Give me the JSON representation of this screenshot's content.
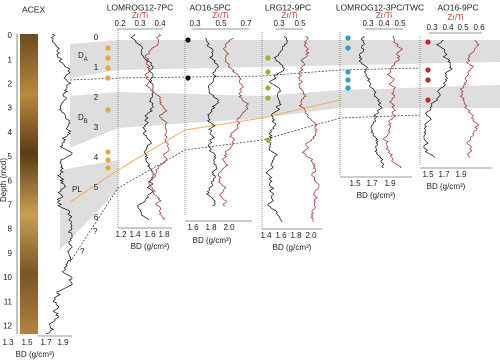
{
  "panels": [
    {
      "title": "ACEX",
      "x_label": "BD (g/cm³)",
      "x_ticks": [
        "1.3",
        "1.5",
        "1.7",
        "1.9"
      ]
    },
    {
      "title": "LOMROG12-7PC",
      "x_label": "BD (g/cm³)",
      "x_ticks": [
        "1.2",
        "1.4",
        "1.6",
        "1.8"
      ],
      "top_label": "Zr/Ti",
      "top_ticks": [
        "0.2",
        "0.3",
        "0.4"
      ],
      "depth_ticks": [
        "0",
        "1",
        "2",
        "3",
        "4",
        "5",
        "6"
      ]
    },
    {
      "title": "AO16-5PC",
      "x_label": "BD (g/cm³)",
      "x_ticks": [
        "1.6",
        "1.8",
        "2.0"
      ],
      "top_label": "Zr/Ti",
      "top_ticks": [
        "0.3",
        "0.5",
        "0.7"
      ]
    },
    {
      "title": "LRG12-9PC",
      "x_label": "BD (g/cm³)",
      "x_ticks": [
        "1.4",
        "1.6",
        "1.8",
        "2.0"
      ],
      "top_label": "Zr/Ti",
      "top_ticks": [
        "0.3",
        "0.5"
      ]
    },
    {
      "title": "LOMROG12-3PC/TWC",
      "x_label": "BD (g/cm³)",
      "x_ticks": [
        "1.5",
        "1.7",
        "1.9"
      ],
      "top_label": "Zr/Ti",
      "top_ticks": [
        "0.3",
        "0.4",
        "0.5"
      ]
    },
    {
      "title": "AO16-9PC",
      "x_label": "BD (g/cm³)",
      "x_ticks": [
        "1.5",
        "1.7",
        "1.9"
      ],
      "top_label": "Zr/Ti",
      "top_ticks": [
        "0.3",
        "0.4",
        "0.5",
        "0.6"
      ]
    }
  ],
  "depth_axis": {
    "label": "Depth (mcd)",
    "ticks": [
      "0",
      "1",
      "2",
      "3",
      "4",
      "5",
      "6",
      "7",
      "8",
      "9",
      "10",
      "11",
      "12"
    ]
  },
  "annotations": [
    {
      "main": "D",
      "sub": "A"
    },
    {
      "main": "D",
      "sub": "B"
    },
    {
      "main": "PL"
    },
    {
      "main": "?"
    },
    {
      "main": "?"
    }
  ]
}
